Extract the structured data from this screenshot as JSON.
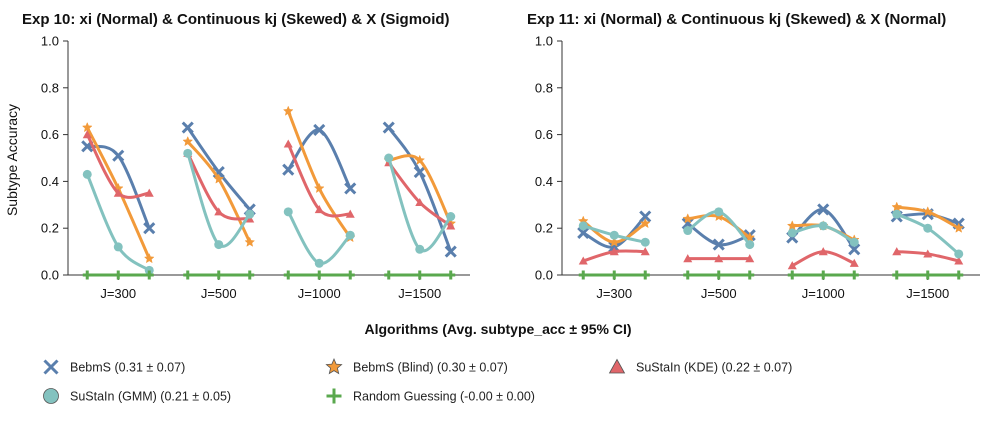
{
  "figure_title": "",
  "xlabel": "Algorithms (Avg. subtype_acc ± 95% CI)",
  "ylabel": "Subtype Accuracy",
  "legend": [
    {
      "label": "BebmS (0.31 ± 0.07)",
      "series": "bebms"
    },
    {
      "label": "BebmS (Blind) (0.30 ± 0.07)",
      "series": "blind"
    },
    {
      "label": "SuStaIn (KDE) (0.22 ± 0.07)",
      "series": "kde"
    },
    {
      "label": "SuStaIn (GMM) (0.21 ± 0.05)",
      "series": "gmm"
    },
    {
      "label": "Random Guessing (-0.00 ± 0.00)",
      "series": "random"
    }
  ],
  "styles": {
    "bebms": {
      "color": "#5a7fad",
      "marker": "x"
    },
    "blind": {
      "color": "#f29a3a",
      "marker": "star"
    },
    "kde": {
      "color": "#e0666a",
      "marker": "triangle"
    },
    "gmm": {
      "color": "#83c2bf",
      "marker": "circle"
    },
    "random": {
      "color": "#5aa84e",
      "marker": "plus"
    }
  },
  "chart_data": [
    {
      "type": "line",
      "title": "Exp 10: xi (Normal) & Continuous kj (Skewed) & X (Sigmoid)",
      "ylabel": "Subtype Accuracy",
      "ylim": [
        0,
        1.0
      ],
      "yticks": [
        "0.0",
        "0.2",
        "0.4",
        "0.6",
        "0.8",
        "1.0"
      ],
      "categories": [
        "J=300",
        "J=500",
        "J=1000",
        "J=1500"
      ],
      "points_per_group": 3,
      "series": [
        {
          "key": "bebms",
          "values": [
            [
              0.55,
              0.51,
              0.2
            ],
            [
              0.63,
              0.44,
              0.28
            ],
            [
              0.45,
              0.62,
              0.37
            ],
            [
              0.63,
              0.44,
              0.1
            ]
          ]
        },
        {
          "key": "blind",
          "values": [
            [
              0.63,
              0.37,
              0.07
            ],
            [
              0.57,
              0.41,
              0.14
            ],
            [
              0.7,
              0.37,
              0.16
            ],
            [
              0.49,
              0.49,
              0.22
            ]
          ]
        },
        {
          "key": "kde",
          "values": [
            [
              0.6,
              0.35,
              0.35
            ],
            [
              0.52,
              0.27,
              0.24
            ],
            [
              0.56,
              0.28,
              0.26
            ],
            [
              0.48,
              0.31,
              0.21
            ]
          ]
        },
        {
          "key": "gmm",
          "values": [
            [
              0.43,
              0.12,
              0.02
            ],
            [
              0.52,
              0.13,
              0.26
            ],
            [
              0.27,
              0.05,
              0.17
            ],
            [
              0.5,
              0.11,
              0.25
            ]
          ]
        },
        {
          "key": "random",
          "values": [
            [
              0.0,
              0.0,
              0.0
            ],
            [
              0.0,
              0.0,
              0.0
            ],
            [
              0.0,
              0.0,
              0.0
            ],
            [
              0.0,
              0.0,
              0.0
            ]
          ]
        }
      ]
    },
    {
      "type": "line",
      "title": "Exp 11: xi (Normal) & Continuous kj (Skewed) & X (Normal)",
      "ylabel": "",
      "ylim": [
        0,
        1.0
      ],
      "yticks": [
        "0.0",
        "0.2",
        "0.4",
        "0.6",
        "0.8",
        "1.0"
      ],
      "categories": [
        "J=300",
        "J=500",
        "J=1000",
        "J=1500"
      ],
      "points_per_group": 3,
      "series": [
        {
          "key": "bebms",
          "values": [
            [
              0.18,
              0.12,
              0.25
            ],
            [
              0.22,
              0.13,
              0.17
            ],
            [
              0.16,
              0.28,
              0.11
            ],
            [
              0.25,
              0.26,
              0.22
            ]
          ]
        },
        {
          "key": "blind",
          "values": [
            [
              0.23,
              0.14,
              0.22
            ],
            [
              0.24,
              0.25,
              0.16
            ],
            [
              0.21,
              0.21,
              0.15
            ],
            [
              0.29,
              0.27,
              0.2
            ]
          ]
        },
        {
          "key": "kde",
          "values": [
            [
              0.06,
              0.1,
              0.1
            ],
            [
              0.07,
              0.07,
              0.07
            ],
            [
              0.04,
              0.1,
              0.05
            ],
            [
              0.1,
              0.09,
              0.06
            ]
          ]
        },
        {
          "key": "gmm",
          "values": [
            [
              0.21,
              0.17,
              0.14
            ],
            [
              0.19,
              0.27,
              0.13
            ],
            [
              0.18,
              0.21,
              0.14
            ],
            [
              0.26,
              0.2,
              0.09
            ]
          ]
        },
        {
          "key": "random",
          "values": [
            [
              0.0,
              0.0,
              0.0
            ],
            [
              0.0,
              0.0,
              0.0
            ],
            [
              0.0,
              0.0,
              0.0
            ],
            [
              0.0,
              0.0,
              0.0
            ]
          ]
        }
      ]
    }
  ]
}
